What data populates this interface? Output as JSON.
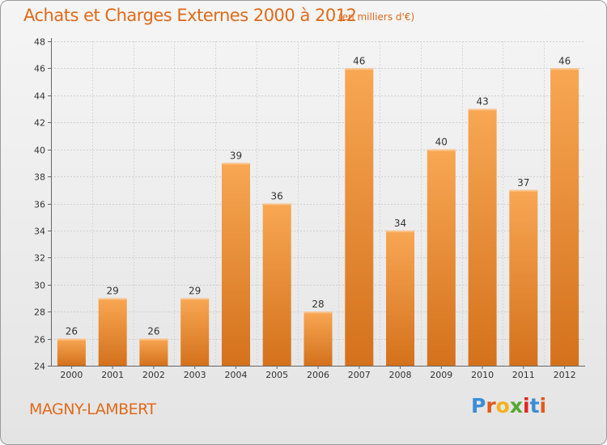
{
  "title": "Achats et Charges Externes 2000 à 2012",
  "unit": "(en milliers d'€)",
  "commune": "MAGNY-LAMBERT",
  "logo": {
    "letters": [
      "P",
      "r",
      "o",
      "x",
      "i",
      "t",
      "i"
    ],
    "colors": [
      "#3a8dd6",
      "#e05a1a",
      "#f2b21b",
      "#55a832",
      "#e0261e",
      "#3a8dd6",
      "#e05a1a"
    ]
  },
  "colors": {
    "bar_top": "#f8a753",
    "bar_bottom": "#d4711c",
    "accent_text": "#e06a1a"
  },
  "chart_data": {
    "type": "bar",
    "categories": [
      "2000",
      "2001",
      "2002",
      "2003",
      "2004",
      "2005",
      "2006",
      "2007",
      "2008",
      "2009",
      "2010",
      "2011",
      "2012"
    ],
    "values": [
      26,
      29,
      26,
      29,
      39,
      36,
      28,
      46,
      34,
      40,
      43,
      37,
      46
    ],
    "ylim": [
      24,
      48
    ],
    "yticks": [
      24,
      26,
      28,
      30,
      32,
      34,
      36,
      38,
      40,
      42,
      44,
      46,
      48
    ],
    "grid": true,
    "legend": "none",
    "data_labels": true
  }
}
